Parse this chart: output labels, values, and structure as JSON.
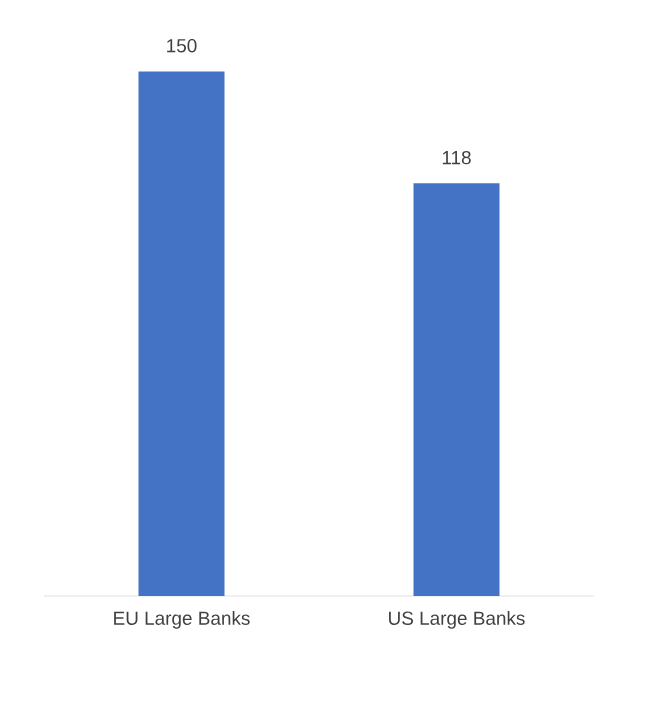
{
  "chart_data": {
    "type": "bar",
    "categories": [
      "EU Large Banks",
      "US Large Banks"
    ],
    "values": [
      150,
      118
    ],
    "color": "#4472c4",
    "data_labels": true
  }
}
